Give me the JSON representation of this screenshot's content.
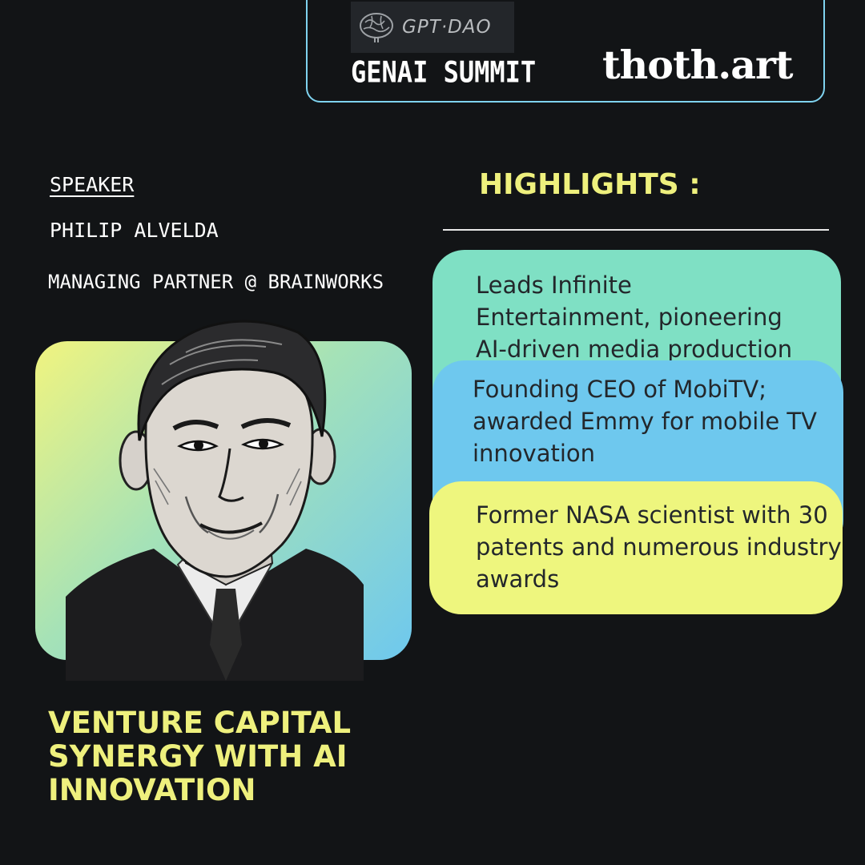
{
  "header": {
    "partner_logo_text": "GPT·DAO",
    "event_title": "GENAI SUMMIT",
    "brand": "thoth.art"
  },
  "speaker": {
    "label": "SPEAKER",
    "name": "PHILIP ALVELDA",
    "role": "MANAGING PARTNER @ BRAINWORKS"
  },
  "highlights": {
    "title": "HIGHLIGHTS :",
    "items": [
      {
        "lines": [
          "Leads Infinite",
          "Entertainment, pioneering",
          "AI-driven media production"
        ],
        "color": "#7fe0c4"
      },
      {
        "lines": [
          "Founding CEO of MobiTV;",
          "awarded Emmy for mobile TV",
          "innovation"
        ],
        "color": "#6ec8ee"
      },
      {
        "lines": [
          "Former NASA scientist with 30",
          "patents and numerous industry",
          "awards"
        ],
        "color": "#eef67e"
      }
    ]
  },
  "talk": {
    "title_lines": [
      "VENTURE CAPITAL",
      "SYNERGY WITH AI",
      "INNOVATION"
    ]
  },
  "colors": {
    "background": "#121416",
    "accent_yellow": "#eef07d",
    "accent_blue": "#7fd3ef"
  }
}
